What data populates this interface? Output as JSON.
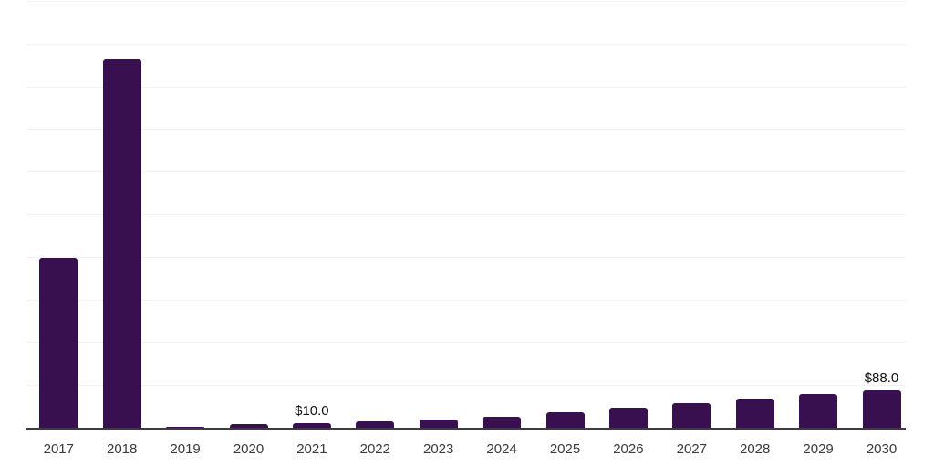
{
  "chart_data": {
    "type": "bar",
    "title": "",
    "subtitle": "",
    "xlabel": "",
    "ylabel": "",
    "categories": [
      "2017",
      "2018",
      "2019",
      "2020",
      "2021",
      "2022",
      "2023",
      "2024",
      "2025",
      "2026",
      "2027",
      "2028",
      "2029",
      "2030"
    ],
    "values": [
      398,
      864,
      2,
      8,
      10,
      16,
      19,
      26,
      36,
      47,
      58,
      68,
      79,
      88
    ],
    "value_labels": {
      "2021": "$10.0",
      "2030": "$88.0"
    },
    "ylim": [
      0,
      1000
    ],
    "gridline_step": 100,
    "grid": "horizontal-only",
    "legend": "none",
    "y_tick_labels_visible": false,
    "colors": {
      "bar": "#38104f",
      "axis": "#3d3d3d",
      "gridline": "#f1f1f1",
      "tick_label": "#3a3a3a",
      "value_label": "#111111",
      "background": "#ffffff"
    }
  }
}
